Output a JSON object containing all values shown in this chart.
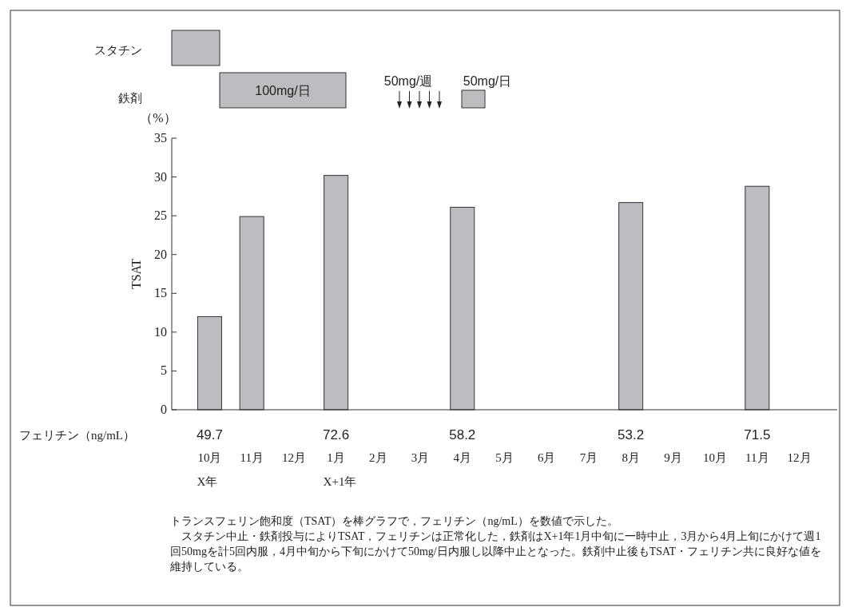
{
  "chart_data": [
    {
      "type": "other",
      "categories": [
        "スタチン",
        "鉄剤"
      ],
      "annotations": [
        "100mg/日",
        "50mg/週",
        "50mg/日"
      ]
    },
    {
      "type": "bar",
      "ylabel": "TSAT",
      "color": "#bcbdc1",
      "categories": [
        "49.7\n10月\nX年",
        "\n11月",
        "\n12月",
        "72.6\n1月\nX+1年",
        "\n2月",
        "\n3月",
        "58.2\n4月",
        "\n5月",
        "\n6月",
        "\n7月",
        "53.2\n8月",
        "\n9月",
        "\n10月",
        "71.5\n11月",
        "\n12月"
      ],
      "values": [
        12.0,
        24.9,
        null,
        30.2,
        null,
        null,
        26.1,
        null,
        null,
        null,
        26.7,
        null,
        null,
        28.8,
        null
      ],
      "ylim": [
        0,
        35
      ],
      "yticks": [
        0,
        5,
        10,
        15,
        20,
        25,
        30,
        35
      ],
      "annotations": [
        "（%）",
        "フェリチン（ng/mL）",
        "トランスフェリン飽和度（TSAT）を棒グラフで，フェリチン（ng/mL）を数値で示した。",
        "　スタチン中止・鉄剤投与によりTSAT，フェリチンは正常化した，鉄剤はX+1年1月中旬に一時中止，3月から4月上旬にかけて週1回50mgを計5回内服，4月中旬から下旬にかけて50mg/日内服し以降中止となった。鉄剤中止後もTSAT・フェリチン共に良好な値を維持している。"
      ]
    }
  ]
}
